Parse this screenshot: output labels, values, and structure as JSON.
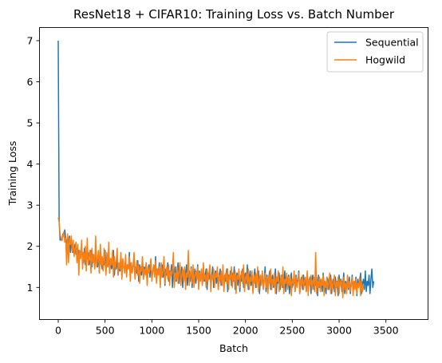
{
  "chart_data": {
    "type": "line",
    "title": "ResNet18 + CIFAR10: Training Loss vs. Batch Number",
    "xlabel": "Batch",
    "ylabel": "Training Loss",
    "xlim": [
      -200,
      3950
    ],
    "ylim": [
      0.22,
      7.32
    ],
    "xticks": [
      0,
      500,
      1000,
      1500,
      2000,
      2500,
      3000,
      3500
    ],
    "yticks": [
      1,
      2,
      3,
      4,
      5,
      6,
      7
    ],
    "grid": false,
    "legend_position": "top-right",
    "series": [
      {
        "name": "Sequential",
        "color": "#1f77b4",
        "x_start": 0,
        "x_step": 10,
        "values": [
          7.0,
          2.6,
          2.15,
          2.17,
          2.14,
          2.3,
          2.25,
          2.4,
          2.2,
          2.1,
          2.0,
          2.15,
          2.25,
          1.85,
          2.1,
          2.0,
          1.85,
          1.9,
          2.05,
          1.8,
          1.95,
          1.7,
          1.9,
          1.85,
          1.75,
          2.0,
          1.75,
          1.6,
          1.95,
          1.55,
          1.8,
          1.7,
          1.85,
          1.55,
          1.65,
          1.9,
          1.5,
          1.8,
          1.7,
          1.45,
          1.95,
          1.6,
          1.5,
          1.75,
          1.35,
          1.85,
          1.6,
          1.45,
          1.7,
          1.55,
          1.9,
          1.4,
          1.65,
          1.5,
          1.8,
          1.35,
          1.7,
          1.45,
          1.55,
          1.9,
          1.3,
          1.6,
          1.45,
          1.75,
          1.3,
          1.55,
          1.4,
          1.8,
          1.25,
          1.65,
          1.5,
          1.4,
          1.7,
          1.3,
          1.55,
          1.45,
          1.85,
          1.2,
          1.6,
          1.4,
          1.5,
          1.75,
          1.25,
          1.5,
          1.35,
          1.65,
          1.15,
          1.55,
          1.4,
          1.3,
          1.7,
          1.2,
          1.5,
          1.35,
          1.6,
          1.1,
          1.45,
          1.55,
          1.25,
          1.65,
          1.2,
          1.4,
          1.5,
          1.3,
          1.75,
          1.15,
          1.45,
          1.35,
          1.6,
          1.1,
          1.4,
          1.55,
          1.25,
          1.5,
          1.05,
          1.45,
          1.3,
          1.6,
          1.15,
          1.4,
          1.3,
          1.55,
          1.0,
          1.45,
          1.25,
          1.5,
          1.15,
          1.35,
          1.6,
          1.1,
          1.4,
          1.25,
          1.5,
          1.0,
          1.35,
          1.45,
          1.2,
          1.55,
          1.05,
          1.3,
          1.4,
          1.15,
          1.5,
          1.0,
          1.35,
          1.25,
          1.45,
          1.1,
          1.3,
          1.55,
          1.0,
          1.4,
          1.2,
          1.35,
          1.05,
          1.5,
          1.15,
          1.3,
          1.45,
          0.95,
          1.35,
          1.2,
          1.4,
          1.1,
          1.3,
          1.5,
          1.0,
          1.25,
          1.4,
          1.1,
          1.35,
          0.95,
          1.3,
          1.45,
          1.05,
          1.25,
          1.4,
          1.0,
          1.3,
          1.15,
          1.45,
          0.9,
          1.3,
          1.2,
          1.4,
          1.05,
          1.35,
          1.15,
          1.5,
          0.95,
          1.25,
          1.35,
          1.05,
          1.4,
          0.9,
          1.3,
          1.15,
          1.45,
          1.0,
          1.25,
          1.35,
          1.1,
          1.55,
          0.95,
          1.2,
          1.4,
          1.05,
          1.3,
          0.9,
          1.25,
          1.45,
          1.0,
          1.3,
          1.15,
          1.4,
          0.85,
          1.25,
          1.1,
          1.35,
          1.0,
          1.2,
          1.5,
          0.9,
          1.3,
          1.05,
          1.25,
          1.4,
          0.95,
          1.15,
          1.3,
          1.0,
          1.2,
          1.45,
          0.85,
          1.25,
          1.1,
          1.35,
          0.95,
          1.2,
          1.3,
          1.0,
          1.15,
          1.4,
          0.9,
          1.25,
          1.05,
          1.3,
          0.85,
          1.2,
          1.35,
          1.0,
          1.1,
          1.25,
          0.9,
          1.3,
          1.05,
          1.2,
          1.4,
          0.85,
          1.15,
          1.25,
          0.95,
          1.3,
          1.05,
          1.2,
          0.9,
          1.35,
          1.0,
          1.1,
          1.25,
          0.85,
          1.2,
          1.3,
          0.95,
          1.15,
          1.05,
          1.25,
          0.8,
          1.3,
          1.0,
          1.15,
          1.2,
          0.9,
          1.35,
          1.05,
          1.1,
          0.85,
          1.25,
          1.2,
          0.95,
          1.15,
          1.3,
          0.85,
          1.1,
          1.2,
          0.9,
          1.25,
          1.0,
          1.15,
          0.8,
          1.3,
          1.05,
          1.2,
          0.9,
          1.1,
          1.35,
          0.85,
          1.15,
          1.0,
          1.2,
          0.95,
          1.25,
          0.85,
          1.1,
          1.3,
          0.9,
          1.15,
          1.05,
          1.25,
          0.8,
          1.2,
          1.0,
          1.15,
          1.35,
          0.85,
          1.1,
          1.2,
          0.95,
          1.4,
          0.9,
          1.15,
          1.05,
          1.3,
          0.85,
          1.2,
          1.45,
          1.0,
          1.15
        ]
      },
      {
        "name": "Hogwild",
        "color": "#ff7f0e",
        "x_start": 0,
        "x_step": 10,
        "values": [
          2.7,
          2.6,
          2.3,
          2.2,
          2.15,
          2.25,
          2.35,
          2.1,
          2.2,
          1.55,
          2.3,
          1.6,
          2.2,
          2.05,
          2.25,
          1.85,
          2.15,
          1.75,
          1.95,
          2.1,
          1.6,
          2.05,
          1.3,
          1.9,
          1.7,
          2.15,
          1.45,
          1.85,
          1.65,
          2.0,
          1.4,
          2.2,
          1.55,
          1.75,
          1.9,
          1.35,
          1.95,
          1.6,
          1.8,
          1.45,
          2.25,
          1.5,
          1.7,
          1.9,
          1.35,
          2.05,
          1.55,
          1.75,
          1.4,
          1.95,
          1.6,
          1.3,
          1.85,
          1.5,
          2.1,
          1.35,
          1.7,
          1.55,
          1.9,
          1.25,
          1.75,
          1.45,
          1.65,
          1.95,
          1.3,
          1.6,
          1.45,
          1.85,
          1.2,
          1.7,
          1.5,
          1.35,
          1.8,
          1.25,
          1.55,
          1.45,
          1.75,
          1.15,
          1.6,
          1.35,
          1.5,
          1.85,
          1.2,
          1.45,
          1.65,
          1.3,
          1.55,
          1.1,
          1.5,
          1.4,
          1.75,
          1.2,
          1.45,
          1.3,
          1.6,
          1.05,
          1.5,
          1.35,
          1.45,
          1.7,
          1.15,
          1.4,
          1.55,
          1.25,
          1.65,
          1.1,
          1.45,
          1.3,
          1.5,
          1.0,
          1.6,
          1.25,
          1.4,
          1.75,
          1.1,
          1.35,
          1.5,
          1.2,
          1.55,
          1.05,
          1.4,
          1.3,
          1.45,
          1.85,
          1.0,
          1.35,
          1.2,
          1.5,
          1.1,
          1.4,
          1.6,
          1.05,
          1.3,
          1.45,
          1.15,
          1.5,
          0.95,
          1.35,
          1.25,
          1.9,
          1.05,
          1.3,
          1.45,
          1.1,
          1.55,
          1.0,
          1.3,
          1.4,
          1.2,
          1.5,
          0.95,
          1.35,
          1.15,
          1.45,
          1.05,
          1.6,
          1.2,
          1.3,
          1.0,
          1.45,
          1.15,
          1.35,
          1.55,
          0.9,
          1.3,
          1.2,
          1.45,
          1.0,
          1.35,
          1.25,
          1.5,
          0.95,
          1.3,
          1.15,
          1.4,
          1.05,
          1.55,
          0.9,
          1.25,
          1.35,
          1.1,
          1.45,
          0.95,
          1.3,
          1.2,
          1.5,
          1.0,
          1.35,
          1.15,
          1.4,
          0.85,
          1.3,
          1.2,
          1.45,
          1.0,
          1.25,
          1.4,
          1.1,
          1.55,
          0.9,
          1.2,
          1.35,
          1.05,
          1.45,
          0.95,
          1.25,
          1.15,
          1.4,
          0.85,
          1.3,
          1.1,
          1.35,
          1.0,
          1.5,
          0.9,
          1.2,
          1.3,
          1.05,
          1.4,
          0.95,
          1.15,
          1.35,
          1.0,
          1.25,
          0.85,
          1.3,
          1.1,
          1.45,
          0.95,
          1.2,
          1.05,
          1.35,
          0.85,
          1.25,
          1.15,
          1.4,
          0.9,
          1.1,
          1.3,
          1.0,
          1.5,
          0.85,
          1.2,
          1.1,
          1.35,
          0.95,
          1.25,
          1.05,
          1.3,
          0.8,
          1.2,
          1.1,
          1.4,
          0.9,
          1.25,
          1.0,
          1.15,
          1.35,
          0.85,
          1.2,
          1.05,
          1.3,
          0.95,
          1.15,
          1.25,
          0.9,
          1.4,
          0.8,
          1.2,
          1.05,
          1.3,
          0.95,
          1.1,
          1.25,
          0.9,
          1.85,
          0.85,
          1.15,
          1.0,
          1.25,
          0.9,
          1.2,
          1.05,
          1.3,
          0.8,
          1.15,
          1.0,
          1.25,
          0.95,
          1.1,
          1.35,
          0.85,
          1.2,
          0.95,
          1.1,
          1.3,
          0.8,
          1.15,
          1.0,
          1.25,
          0.85,
          1.2,
          1.05,
          1.15,
          0.75,
          1.25,
          0.95,
          1.1,
          0.85,
          1.3,
          1.0,
          1.15,
          0.9,
          1.05,
          1.25,
          0.8,
          1.15,
          0.95,
          1.2,
          0.85,
          1.1,
          1.0,
          1.25,
          0.8,
          1.15,
          0.9,
          1.05
        ]
      }
    ]
  }
}
